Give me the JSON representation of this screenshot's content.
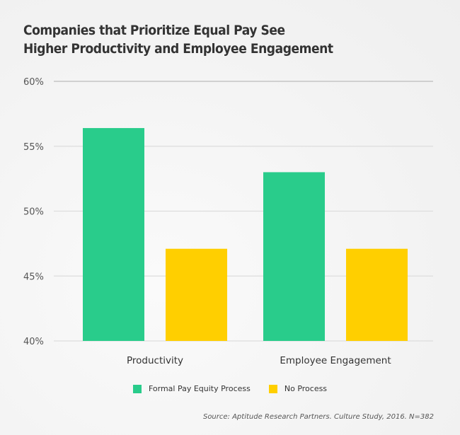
{
  "chart_data": {
    "type": "bar",
    "title": "Companies that Prioritize Equal Pay See Higher Productivity and Employee Engagement",
    "title_lines": [
      "Companies that Prioritize Equal Pay See",
      "Higher Productivity and Employee Engagement"
    ],
    "categories": [
      "Productivity",
      "Employee Engagement"
    ],
    "series": [
      {
        "name": "Formal Pay Equity Process",
        "values": [
          56.4,
          53.0
        ],
        "color": "#29cc8b"
      },
      {
        "name": "No Process",
        "values": [
          47.1,
          47.1
        ],
        "color": "#ffcf00"
      }
    ],
    "ylim": [
      40,
      60
    ],
    "yticks": [
      40,
      45,
      50,
      55,
      60
    ],
    "ytick_labels": [
      "40%",
      "45%",
      "50%",
      "55%",
      "60%"
    ],
    "grid": true,
    "legend": "bottom",
    "source": "Source: Aptitude Research Partners. Culture Study, 2016. N=382"
  }
}
